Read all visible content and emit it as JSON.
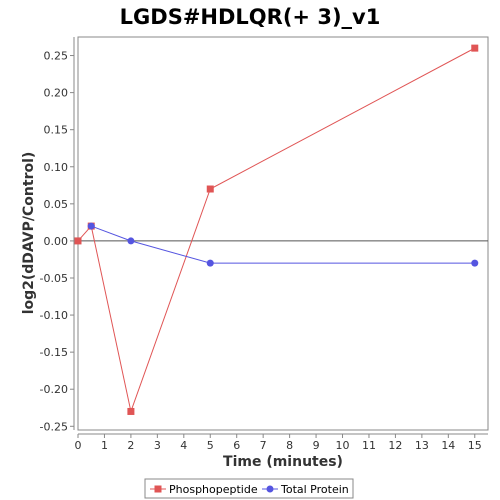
{
  "chart_data": {
    "type": "line",
    "title": "LGDS#HDLQR(+ 3)_v1",
    "xlabel": "Time (minutes)",
    "ylabel": "log2(dDAVP/Control)",
    "xlim": [
      0,
      15.5
    ],
    "ylim": [
      -0.255,
      0.275
    ],
    "x_ticks": [
      0,
      1,
      2,
      3,
      4,
      5,
      6,
      7,
      8,
      9,
      10,
      11,
      12,
      13,
      14,
      15
    ],
    "y_ticks": [
      -0.25,
      -0.2,
      -0.15,
      -0.1,
      -0.05,
      0.0,
      0.05,
      0.1,
      0.15,
      0.2,
      0.25
    ],
    "y_tick_labels": [
      "-0.25",
      "-0.20",
      "-0.15",
      "-0.10",
      "-0.05",
      "0.00",
      "0.05",
      "0.10",
      "0.15",
      "0.20",
      "0.25"
    ],
    "zero_line": true,
    "grid": false,
    "legend_position": "bottom-center",
    "series": [
      {
        "name": "Phosphopeptide",
        "color": "#e05555",
        "marker": "square",
        "x": [
          0,
          0.5,
          2,
          5,
          15
        ],
        "y": [
          0.0,
          0.02,
          -0.23,
          0.07,
          0.26
        ]
      },
      {
        "name": "Total Protein",
        "color": "#5555e0",
        "marker": "circle",
        "x": [
          0.5,
          2,
          5,
          15
        ],
        "y": [
          0.02,
          0.0,
          -0.03,
          -0.03
        ]
      }
    ]
  }
}
